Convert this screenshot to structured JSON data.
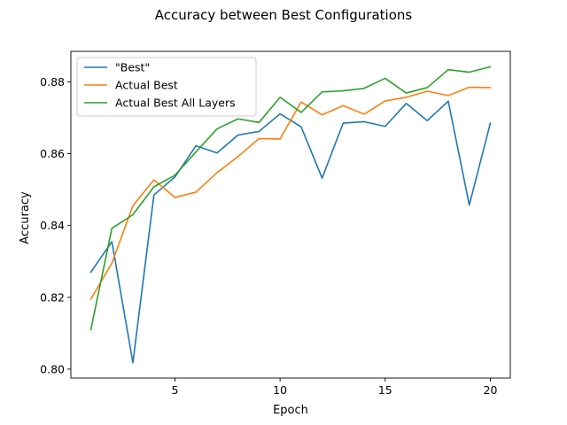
{
  "chart_data": {
    "type": "line",
    "title": "Accuracy between Best Configurations",
    "xlabel": "Epoch",
    "ylabel": "Accuracy",
    "x": [
      1,
      2,
      3,
      4,
      5,
      6,
      7,
      8,
      9,
      10,
      11,
      12,
      13,
      14,
      15,
      16,
      17,
      18,
      19,
      20
    ],
    "xlim": [
      0.05,
      20.95
    ],
    "ylim": [
      0.7975,
      0.8885
    ],
    "xticks": [
      5,
      10,
      15,
      20
    ],
    "xtick_labels": [
      "5",
      "10",
      "15",
      "20"
    ],
    "yticks": [
      0.8,
      0.82,
      0.84,
      0.86,
      0.88
    ],
    "ytick_labels": [
      "0.80",
      "0.82",
      "0.84",
      "0.86",
      "0.88"
    ],
    "grid": false,
    "legend_position": "upper-left",
    "series": [
      {
        "name": "\"Best\"",
        "color": "#1f77b4",
        "values": [
          0.827,
          0.8355,
          0.8018,
          0.8485,
          0.8535,
          0.8622,
          0.8602,
          0.8652,
          0.8662,
          0.8711,
          0.8675,
          0.8532,
          0.8685,
          0.8689,
          0.8676,
          0.874,
          0.8692,
          0.8746,
          0.8457,
          0.8685
        ]
      },
      {
        "name": "Actual Best",
        "color": "#ff7f0e",
        "values": [
          0.8195,
          0.8295,
          0.8455,
          0.8527,
          0.8478,
          0.8493,
          0.8547,
          0.8592,
          0.8642,
          0.8641,
          0.8744,
          0.8708,
          0.8734,
          0.871,
          0.8747,
          0.8757,
          0.8774,
          0.8762,
          0.8785,
          0.8784
        ]
      },
      {
        "name": "Actual Best All Layers",
        "color": "#2ca02c",
        "values": [
          0.811,
          0.8392,
          0.843,
          0.8508,
          0.854,
          0.8605,
          0.8669,
          0.8697,
          0.8687,
          0.8757,
          0.8715,
          0.8772,
          0.8775,
          0.8782,
          0.881,
          0.8769,
          0.8784,
          0.8834,
          0.8827,
          0.8842
        ]
      }
    ]
  }
}
